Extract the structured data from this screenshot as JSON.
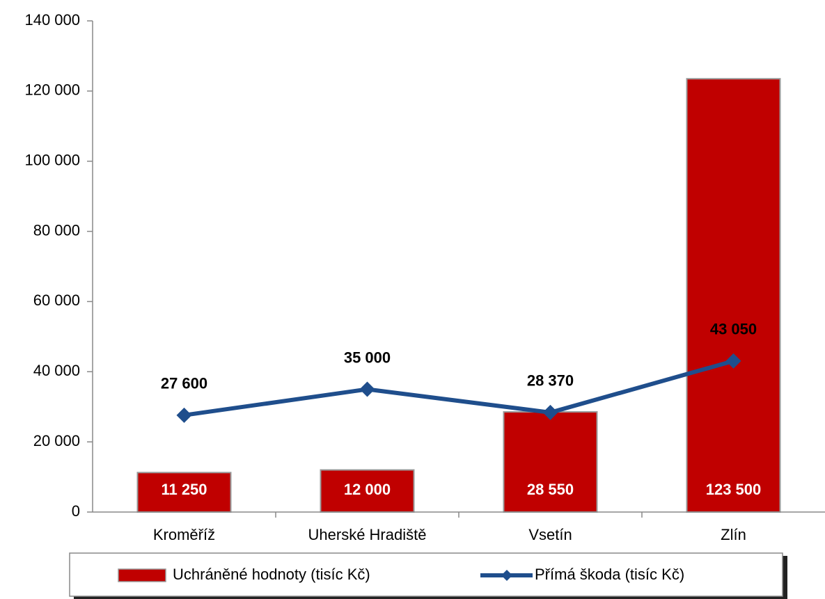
{
  "chart_data": {
    "type": "bar",
    "categories": [
      "Kroměříž",
      "Uherské Hradiště",
      "Vsetín",
      "Zlín"
    ],
    "series": [
      {
        "name": "Uchráněné hodnoty (tisíc Kč)",
        "type": "bar",
        "color": "#c00000",
        "values": [
          11250,
          12000,
          28550,
          123500
        ],
        "value_labels": [
          "11 250",
          "12 000",
          "28 550",
          "123 500"
        ]
      },
      {
        "name": "Přímá škoda (tisíc Kč)",
        "type": "line",
        "color": "#1f4e8c",
        "values": [
          27600,
          35000,
          28370,
          43050
        ],
        "value_labels": [
          "27 600",
          "35 000",
          "28 370",
          "43 050"
        ]
      }
    ],
    "ylim": [
      0,
      140000
    ],
    "yticks": [
      0,
      {
        "value": 20000,
        "label": "20 000"
      },
      {
        "value": 40000,
        "label": "40 000"
      },
      {
        "value": 60000,
        "label": "60 000"
      },
      {
        "value": 80000,
        "label": "80 000"
      },
      {
        "value": 100000,
        "label": "100 000"
      },
      {
        "value": 120000,
        "label": "120 000"
      },
      {
        "value": 140000,
        "label": "140 000"
      }
    ],
    "legend": "bottom"
  }
}
